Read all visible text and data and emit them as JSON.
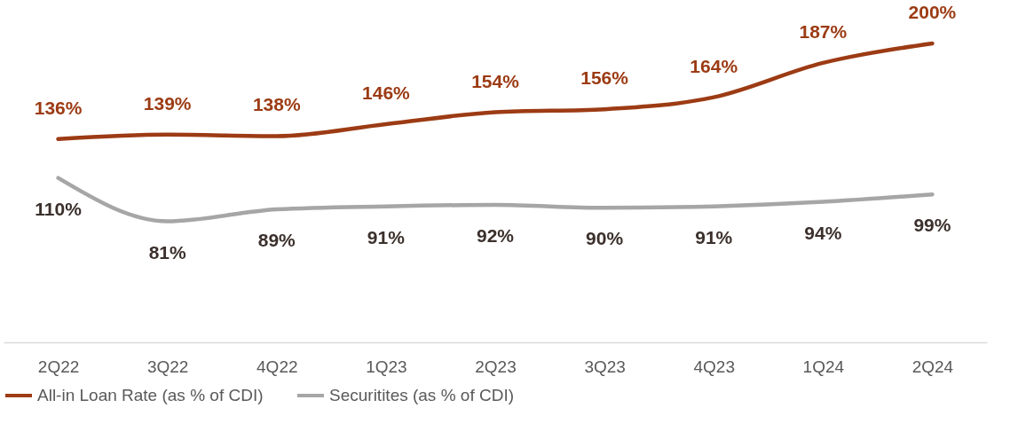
{
  "chart_data": {
    "type": "line",
    "categories": [
      "2Q22",
      "3Q22",
      "4Q22",
      "1Q23",
      "2Q23",
      "3Q23",
      "4Q23",
      "1Q24",
      "2Q24"
    ],
    "series": [
      {
        "name": "All-in Loan Rate (as % of CDI)",
        "color": "#9c3b14",
        "values": [
          136,
          139,
          138,
          146,
          154,
          156,
          164,
          187,
          200
        ],
        "value_labels": [
          "136%",
          "139%",
          "138%",
          "146%",
          "154%",
          "156%",
          "164%",
          "187%",
          "200%"
        ]
      },
      {
        "name": "Securitites (as % of CDI)",
        "color": "#a6a6a6",
        "values": [
          110,
          81,
          89,
          91,
          92,
          90,
          91,
          94,
          99
        ],
        "value_labels": [
          "110%",
          "81%",
          "89%",
          "91%",
          "92%",
          "90%",
          "91%",
          "94%",
          "99%"
        ]
      }
    ],
    "legend": "bottom",
    "grid": false,
    "marker": "none",
    "line_style": "solid"
  }
}
